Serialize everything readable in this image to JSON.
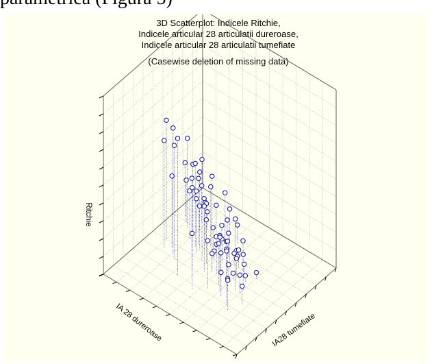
{
  "page": {
    "top_text": "parametrică (Figura 5)"
  },
  "chart_data": {
    "type": "scatter",
    "title_lines": [
      "3D Scatterplot: Indicele Ritchie,",
      "Indicele articular 28 articulatii dureroase,",
      "Indicele articular 28 articulatii tumefiate",
      "(Casewise deletion of missing data)"
    ],
    "axes": {
      "vertical": "Ritchie",
      "left_depth": "IA 28 dureroase",
      "right_depth": "IA28 tumefiate"
    },
    "tick_labels_shown": false,
    "grid": true,
    "drop_lines": true,
    "point_color": "#1a1aa8",
    "points": [
      [
        9,
        20,
        23
      ],
      [
        13,
        24,
        21
      ],
      [
        15,
        27,
        20
      ],
      [
        13,
        26,
        18
      ],
      [
        12,
        23,
        19
      ],
      [
        15,
        19,
        17
      ],
      [
        14,
        16,
        16
      ],
      [
        17,
        22,
        14
      ],
      [
        14,
        25,
        12
      ],
      [
        17,
        21,
        13
      ],
      [
        13,
        17,
        11
      ],
      [
        18,
        22,
        11
      ],
      [
        19,
        24,
        12
      ],
      [
        20,
        26,
        15
      ],
      [
        22,
        28,
        9
      ],
      [
        19,
        20,
        10
      ],
      [
        16,
        21,
        9
      ],
      [
        18,
        24,
        8
      ],
      [
        20,
        24,
        7
      ],
      [
        21,
        27,
        7
      ],
      [
        22,
        19,
        8
      ],
      [
        18,
        15,
        9
      ],
      [
        20,
        22,
        6
      ],
      [
        22,
        21,
        5
      ],
      [
        23,
        25,
        6
      ],
      [
        17,
        18,
        5
      ],
      [
        19,
        16,
        4
      ],
      [
        21,
        24,
        4
      ],
      [
        19,
        21,
        4
      ],
      [
        21,
        19,
        3
      ],
      [
        23,
        17,
        3
      ],
      [
        24,
        20,
        2
      ],
      [
        18,
        14,
        2
      ],
      [
        22,
        23,
        3
      ],
      [
        20,
        15,
        1
      ],
      [
        16,
        10,
        1
      ],
      [
        12,
        13,
        7
      ],
      [
        10,
        11,
        4
      ],
      [
        14,
        9,
        6
      ],
      [
        10,
        14,
        8
      ],
      [
        11,
        12,
        9
      ],
      [
        13,
        9,
        3
      ],
      [
        14,
        15,
        5
      ],
      [
        13,
        12,
        6
      ],
      [
        14,
        16,
        3
      ],
      [
        15,
        13,
        2
      ],
      [
        17,
        11,
        2
      ],
      [
        18,
        13,
        3
      ],
      [
        15,
        15,
        6
      ],
      [
        16,
        14,
        5
      ],
      [
        17,
        16,
        4
      ],
      [
        19,
        14,
        1
      ],
      [
        16,
        17,
        2
      ],
      [
        17,
        15,
        4
      ],
      [
        18,
        18,
        3
      ],
      [
        16,
        12,
        3
      ],
      [
        12,
        19,
        6
      ],
      [
        17,
        20,
        9
      ],
      [
        14,
        14,
        4
      ],
      [
        15,
        12,
        1
      ],
      [
        8,
        16,
        17
      ],
      [
        12,
        11,
        2
      ],
      [
        16,
        22,
        12
      ],
      [
        18,
        9,
        1
      ],
      [
        15,
        18,
        10
      ],
      [
        13,
        10,
        12
      ],
      [
        18,
        12,
        5
      ],
      [
        8,
        8,
        5
      ],
      [
        9,
        9,
        9
      ],
      [
        11,
        7,
        3
      ]
    ]
  }
}
